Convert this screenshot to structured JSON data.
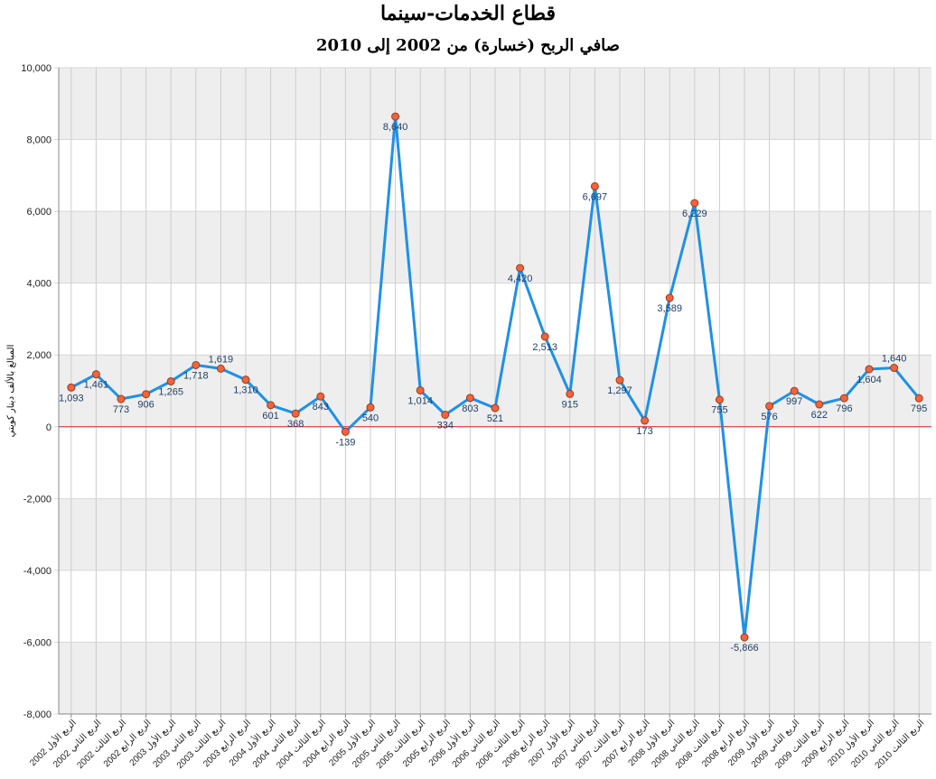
{
  "chart_data": {
    "type": "line",
    "title": "قطاع الخدمات-سينما",
    "subtitle": "صافي الربح (خسارة) من 2002 إلى 2010",
    "ylabel": "المبالغ بالألف دينار كويتي",
    "xlabel": "",
    "ylim": [
      -8000,
      10000
    ],
    "yticks": [
      -8000,
      -6000,
      -4000,
      -2000,
      0,
      2000,
      4000,
      6000,
      8000,
      10000
    ],
    "ytick_labels": [
      "-8,000",
      "-6,000",
      "-4,000",
      "-2,000",
      "0",
      "2,000",
      "4,000",
      "6,000",
      "8,000",
      "10,000"
    ],
    "grid": true,
    "legend": "none",
    "colors": {
      "line": "#1e90e8",
      "marker_fill": "#f0643c",
      "marker_stroke": "#a03a1a",
      "zero_line": "#e0211a",
      "band": "#eeeeee",
      "grid": "#cccccc"
    },
    "categories": [
      "الربع الأول 2002",
      "الربع الثاني 2002",
      "الربع الثالث 2002",
      "الربع الرابع 2002",
      "الربع الأول 2003",
      "الربع الثاني 2003",
      "الربع الثالث 2003",
      "الربع الرابع 2003",
      "الربع الأول 2004",
      "الربع الثاني 2004",
      "الربع الثالث 2004",
      "الربع الرابع 2004",
      "الربع الأول 2005",
      "الربع الثاني 2005",
      "الربع الثالث 2005",
      "الربع الرابع 2005",
      "الربع الأول 2006",
      "الربع الثاني 2006",
      "الربع الثالث 2006",
      "الربع الرابع 2006",
      "الربع الأول 2007",
      "الربع الثاني 2007",
      "الربع الثالث 2007",
      "الربع الرابع 2007",
      "الربع الأول 2008",
      "الربع الثاني 2008",
      "الربع الثالث 2008",
      "الربع الرابع 2008",
      "الربع الأول 2009",
      "الربع الثاني 2009",
      "الربع الثالث 2009",
      "الربع الرابع 2009",
      "الربع الأول 2010",
      "الربع الثاني 2010",
      "الربع الثالث 2010"
    ],
    "values": [
      1093,
      1461,
      773,
      906,
      1265,
      1718,
      1619,
      1310,
      601,
      368,
      843,
      -139,
      540,
      8640,
      1014,
      334,
      803,
      521,
      4420,
      2513,
      915,
      6697,
      1297,
      173,
      3589,
      6229,
      755,
      -5866,
      576,
      997,
      622,
      796,
      1604,
      1640,
      795
    ],
    "labels": [
      "1,093",
      "1,461",
      "773",
      "906",
      "1,265",
      "1,718",
      "1,619",
      "1,310",
      "601",
      "368",
      "843",
      "-139",
      "540",
      "8,640",
      "1,014",
      "334",
      "803",
      "521",
      "4,420",
      "2,513",
      "915",
      "6,697",
      "1,297",
      "173",
      "3,589",
      "6,229",
      "755",
      "-5,866",
      "576",
      "997",
      "622",
      "796",
      "1,604",
      "1,640",
      "795"
    ],
    "label_pos": [
      "below",
      "below",
      "below",
      "below",
      "below",
      "below",
      "above",
      "below",
      "below",
      "below",
      "below",
      "below",
      "below",
      "below",
      "below",
      "below",
      "below",
      "below",
      "below",
      "below",
      "below",
      "below",
      "below",
      "below",
      "below",
      "below",
      "below",
      "below",
      "below",
      "below",
      "below",
      "below",
      "below",
      "above",
      "below"
    ]
  }
}
